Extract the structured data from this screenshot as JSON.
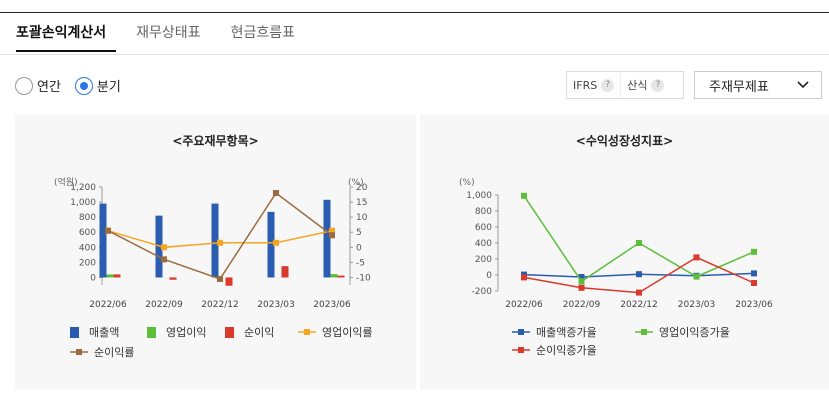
{
  "tabs": [
    {
      "label": "포괄손익계산서",
      "active": true
    },
    {
      "label": "재무상태표",
      "active": false
    },
    {
      "label": "현금흐름표",
      "active": false
    }
  ],
  "period_options": [
    {
      "label": "연간",
      "checked": false
    },
    {
      "label": "분기",
      "checked": true
    }
  ],
  "toggles": [
    {
      "label": "IFRS",
      "help": "?"
    },
    {
      "label": "산식",
      "help": "?"
    }
  ],
  "select": {
    "value": "주재무제표"
  },
  "colors": {
    "revenue": "#2a5db0",
    "operating_profit": "#5cbf3a",
    "net_income": "#d93a2b",
    "operating_margin": "#f5a623",
    "net_margin": "#9b6b40"
  },
  "chart_data": [
    {
      "type": "bar",
      "title": "<주요재무항목>",
      "ylabel_left": "(억원)",
      "ylabel_right": "(%)",
      "categories": [
        "2022/06",
        "2022/09",
        "2022/12",
        "2023/03",
        "2023/06"
      ],
      "ylim_left": [
        -100,
        1200
      ],
      "yticks_left": [
        "1,200",
        "1,000",
        "800",
        "600",
        "400",
        "200",
        "0"
      ],
      "ylim_right": [
        -12.5,
        20
      ],
      "yticks_right": [
        "20",
        "15",
        "10",
        "5",
        "0",
        "-5",
        "-10"
      ],
      "series": [
        {
          "name": "매출액",
          "type": "bar",
          "axis": "left",
          "color": "#2a5db0",
          "values": [
            980,
            820,
            980,
            870,
            1030
          ]
        },
        {
          "name": "영업이익",
          "type": "bar",
          "axis": "left",
          "color": "#5cbf3a",
          "values": [
            40,
            0,
            0,
            0,
            45
          ]
        },
        {
          "name": "순이익",
          "type": "bar",
          "axis": "left",
          "color": "#d93a2b",
          "values": [
            40,
            -30,
            -110,
            150,
            25
          ]
        },
        {
          "name": "영업이익률",
          "type": "line",
          "axis": "right",
          "color": "#f5a623",
          "values": [
            5.5,
            0,
            1.5,
            1.5,
            5.5
          ]
        },
        {
          "name": "순이익률",
          "type": "line",
          "axis": "right",
          "color": "#9b6b40",
          "values": [
            5.5,
            -4,
            -10.5,
            18,
            4
          ]
        }
      ]
    },
    {
      "type": "line",
      "title": "<수익성장성지표>",
      "ylabel": "(%)",
      "categories": [
        "2022/06",
        "2022/09",
        "2022/12",
        "2023/03",
        "2023/06"
      ],
      "ylim": [
        -200,
        1000
      ],
      "yticks": [
        "1,000",
        "800",
        "600",
        "400",
        "200",
        "0",
        "-200"
      ],
      "series": [
        {
          "name": "매출액증가율",
          "color": "#2a5db0",
          "values": [
            5,
            -25,
            10,
            -10,
            20
          ]
        },
        {
          "name": "영업이익증가율",
          "color": "#5cbf3a",
          "values": [
            990,
            -80,
            400,
            -20,
            290
          ]
        },
        {
          "name": "순이익증가율",
          "color": "#d93a2b",
          "values": [
            -30,
            -160,
            -220,
            220,
            -100
          ]
        }
      ]
    }
  ]
}
